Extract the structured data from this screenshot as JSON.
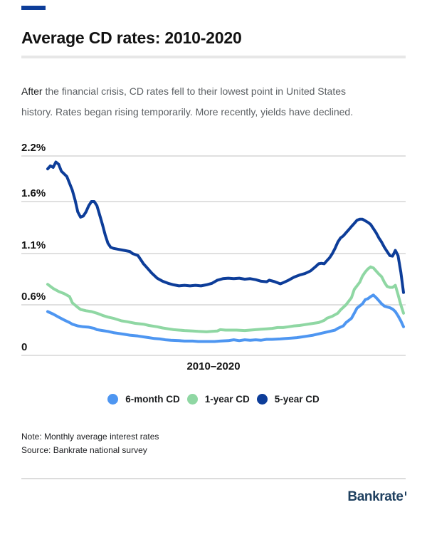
{
  "accent_bar": {
    "color": "#0d3d99"
  },
  "header": {
    "title": "Average CD rates: 2010-2020"
  },
  "intro": {
    "lead": "After",
    "line1_rest": " the financial crisis, CD rates fell to their lowest point in United States",
    "line2": "history. Rates began rising temporarily. More recently, yields have declined."
  },
  "chart_data": {
    "type": "line",
    "title": "Average CD rates: 2010-2020",
    "xlabel": "2010–2020",
    "ylabel": "",
    "x_unit": "months since Jan 2010",
    "x_range": [
      0,
      130
    ],
    "ylim": [
      0,
      2.3
    ],
    "grid": true,
    "legend_position": "bottom",
    "ytick_labels": [
      "2.2%",
      "1.6%",
      "1.1%",
      "0.6%",
      "0"
    ],
    "ytick_values": [
      2.2,
      1.6,
      1.1,
      0.6,
      0
    ],
    "series": [
      {
        "name": "6-month CD",
        "color": "#4e96f1",
        "points": [
          [
            0,
            0.52
          ],
          [
            2,
            0.49
          ],
          [
            4,
            0.455
          ],
          [
            6,
            0.42
          ],
          [
            8,
            0.39
          ],
          [
            9,
            0.37
          ],
          [
            11,
            0.35
          ],
          [
            13,
            0.34
          ],
          [
            15,
            0.335
          ],
          [
            17,
            0.32
          ],
          [
            18,
            0.305
          ],
          [
            20,
            0.295
          ],
          [
            22,
            0.285
          ],
          [
            24,
            0.27
          ],
          [
            26,
            0.26
          ],
          [
            28,
            0.25
          ],
          [
            30,
            0.24
          ],
          [
            33,
            0.23
          ],
          [
            35,
            0.22
          ],
          [
            37,
            0.21
          ],
          [
            39,
            0.2
          ],
          [
            41,
            0.195
          ],
          [
            43,
            0.185
          ],
          [
            45,
            0.18
          ],
          [
            48,
            0.175
          ],
          [
            50,
            0.17
          ],
          [
            53,
            0.17
          ],
          [
            55,
            0.165
          ],
          [
            58,
            0.165
          ],
          [
            61,
            0.165
          ],
          [
            63,
            0.17
          ],
          [
            66,
            0.175
          ],
          [
            68,
            0.185
          ],
          [
            70,
            0.175
          ],
          [
            72,
            0.185
          ],
          [
            74,
            0.18
          ],
          [
            76,
            0.185
          ],
          [
            78,
            0.18
          ],
          [
            80,
            0.19
          ],
          [
            82,
            0.19
          ],
          [
            85,
            0.195
          ],
          [
            87,
            0.2
          ],
          [
            89,
            0.205
          ],
          [
            91,
            0.21
          ],
          [
            93,
            0.22
          ],
          [
            95,
            0.23
          ],
          [
            97,
            0.24
          ],
          [
            99,
            0.255
          ],
          [
            101,
            0.27
          ],
          [
            103,
            0.285
          ],
          [
            105,
            0.3
          ],
          [
            106,
            0.32
          ],
          [
            108,
            0.35
          ],
          [
            109,
            0.39
          ],
          [
            111,
            0.44
          ],
          [
            112,
            0.5
          ],
          [
            113,
            0.56
          ],
          [
            115,
            0.61
          ],
          [
            116,
            0.65
          ],
          [
            117,
            0.66
          ],
          [
            118,
            0.68
          ],
          [
            119,
            0.695
          ],
          [
            120,
            0.67
          ],
          [
            121,
            0.64
          ],
          [
            122,
            0.61
          ],
          [
            123,
            0.585
          ],
          [
            124,
            0.575
          ],
          [
            125,
            0.565
          ],
          [
            126,
            0.55
          ],
          [
            127,
            0.52
          ],
          [
            128,
            0.47
          ],
          [
            129,
            0.41
          ],
          [
            130,
            0.34
          ]
        ]
      },
      {
        "name": "1-year CD",
        "color": "#8fd7a3",
        "points": [
          [
            0,
            0.8
          ],
          [
            2,
            0.76
          ],
          [
            4,
            0.73
          ],
          [
            6,
            0.71
          ],
          [
            8,
            0.68
          ],
          [
            9,
            0.62
          ],
          [
            11,
            0.57
          ],
          [
            12,
            0.545
          ],
          [
            14,
            0.53
          ],
          [
            16,
            0.52
          ],
          [
            18,
            0.5
          ],
          [
            20,
            0.475
          ],
          [
            22,
            0.455
          ],
          [
            24,
            0.44
          ],
          [
            25,
            0.43
          ],
          [
            27,
            0.41
          ],
          [
            29,
            0.4
          ],
          [
            32,
            0.38
          ],
          [
            35,
            0.37
          ],
          [
            37,
            0.355
          ],
          [
            40,
            0.34
          ],
          [
            42,
            0.325
          ],
          [
            44,
            0.315
          ],
          [
            46,
            0.305
          ],
          [
            48,
            0.3
          ],
          [
            50,
            0.295
          ],
          [
            53,
            0.29
          ],
          [
            55,
            0.285
          ],
          [
            58,
            0.28
          ],
          [
            60,
            0.285
          ],
          [
            62,
            0.29
          ],
          [
            63,
            0.305
          ],
          [
            65,
            0.3
          ],
          [
            67,
            0.3
          ],
          [
            69,
            0.3
          ],
          [
            72,
            0.295
          ],
          [
            74,
            0.3
          ],
          [
            76,
            0.305
          ],
          [
            78,
            0.31
          ],
          [
            80,
            0.315
          ],
          [
            82,
            0.32
          ],
          [
            84,
            0.33
          ],
          [
            86,
            0.33
          ],
          [
            88,
            0.34
          ],
          [
            90,
            0.35
          ],
          [
            92,
            0.355
          ],
          [
            94,
            0.365
          ],
          [
            96,
            0.375
          ],
          [
            99,
            0.39
          ],
          [
            101,
            0.415
          ],
          [
            102,
            0.44
          ],
          [
            104,
            0.465
          ],
          [
            106,
            0.5
          ],
          [
            107,
            0.54
          ],
          [
            109,
            0.6
          ],
          [
            111,
            0.67
          ],
          [
            112,
            0.75
          ],
          [
            114,
            0.82
          ],
          [
            115,
            0.88
          ],
          [
            116,
            0.92
          ],
          [
            117,
            0.95
          ],
          [
            118,
            0.97
          ],
          [
            119,
            0.96
          ],
          [
            120,
            0.93
          ],
          [
            121,
            0.9
          ],
          [
            122,
            0.875
          ],
          [
            123,
            0.82
          ],
          [
            124,
            0.78
          ],
          [
            125,
            0.77
          ],
          [
            126,
            0.77
          ],
          [
            127,
            0.79
          ],
          [
            128,
            0.7
          ],
          [
            129,
            0.6
          ],
          [
            130,
            0.5
          ]
        ]
      },
      {
        "name": "5-year CD",
        "color": "#0d3d99",
        "points": [
          [
            0,
            2.03
          ],
          [
            1,
            2.07
          ],
          [
            2,
            2.05
          ],
          [
            3,
            2.12
          ],
          [
            4,
            2.09
          ],
          [
            5,
            2.0
          ],
          [
            7,
            1.93
          ],
          [
            9,
            1.75
          ],
          [
            10,
            1.62
          ],
          [
            11,
            1.5
          ],
          [
            12,
            1.45
          ],
          [
            13,
            1.46
          ],
          [
            14,
            1.5
          ],
          [
            15,
            1.56
          ],
          [
            16,
            1.6
          ],
          [
            17,
            1.6
          ],
          [
            18,
            1.56
          ],
          [
            19,
            1.47
          ],
          [
            20,
            1.38
          ],
          [
            21,
            1.28
          ],
          [
            22,
            1.2
          ],
          [
            23,
            1.16
          ],
          [
            24,
            1.15
          ],
          [
            26,
            1.14
          ],
          [
            28,
            1.13
          ],
          [
            30,
            1.12
          ],
          [
            31,
            1.1
          ],
          [
            33,
            1.08
          ],
          [
            34,
            1.04
          ],
          [
            35,
            1.0
          ],
          [
            36,
            0.97
          ],
          [
            38,
            0.91
          ],
          [
            40,
            0.86
          ],
          [
            42,
            0.83
          ],
          [
            44,
            0.81
          ],
          [
            46,
            0.795
          ],
          [
            48,
            0.785
          ],
          [
            50,
            0.79
          ],
          [
            52,
            0.785
          ],
          [
            54,
            0.79
          ],
          [
            56,
            0.785
          ],
          [
            58,
            0.795
          ],
          [
            60,
            0.81
          ],
          [
            62,
            0.84
          ],
          [
            64,
            0.855
          ],
          [
            66,
            0.86
          ],
          [
            68,
            0.855
          ],
          [
            70,
            0.86
          ],
          [
            72,
            0.85
          ],
          [
            74,
            0.855
          ],
          [
            76,
            0.845
          ],
          [
            78,
            0.83
          ],
          [
            80,
            0.825
          ],
          [
            81,
            0.84
          ],
          [
            83,
            0.825
          ],
          [
            85,
            0.805
          ],
          [
            86,
            0.815
          ],
          [
            88,
            0.84
          ],
          [
            90,
            0.87
          ],
          [
            92,
            0.89
          ],
          [
            94,
            0.905
          ],
          [
            96,
            0.93
          ],
          [
            98,
            0.975
          ],
          [
            99,
            1.0
          ],
          [
            100,
            1.005
          ],
          [
            101,
            1.0
          ],
          [
            102,
            1.03
          ],
          [
            103,
            1.06
          ],
          [
            104,
            1.1
          ],
          [
            105,
            1.15
          ],
          [
            106,
            1.21
          ],
          [
            107,
            1.25
          ],
          [
            108,
            1.27
          ],
          [
            109,
            1.3
          ],
          [
            110,
            1.33
          ],
          [
            111,
            1.36
          ],
          [
            112,
            1.39
          ],
          [
            113,
            1.42
          ],
          [
            114,
            1.43
          ],
          [
            115,
            1.43
          ],
          [
            116,
            1.415
          ],
          [
            117,
            1.4
          ],
          [
            118,
            1.38
          ],
          [
            119,
            1.34
          ],
          [
            120,
            1.3
          ],
          [
            121,
            1.25
          ],
          [
            122,
            1.21
          ],
          [
            123,
            1.16
          ],
          [
            124,
            1.12
          ],
          [
            125,
            1.08
          ],
          [
            126,
            1.075
          ],
          [
            127,
            1.13
          ],
          [
            128,
            1.08
          ],
          [
            129,
            0.92
          ],
          [
            130,
            0.72
          ]
        ]
      }
    ]
  },
  "footnotes": {
    "note": "Note: Monthly average interest rates",
    "source": "Source: Bankrate national survey"
  },
  "brand": {
    "logo_text": "Bankrate",
    "color": "#1f4060"
  },
  "colors": {
    "grid": "#d6d6d6",
    "accent_navy": "#0d3d99",
    "text_primary": "#121212",
    "text_secondary": "#5c6064"
  }
}
